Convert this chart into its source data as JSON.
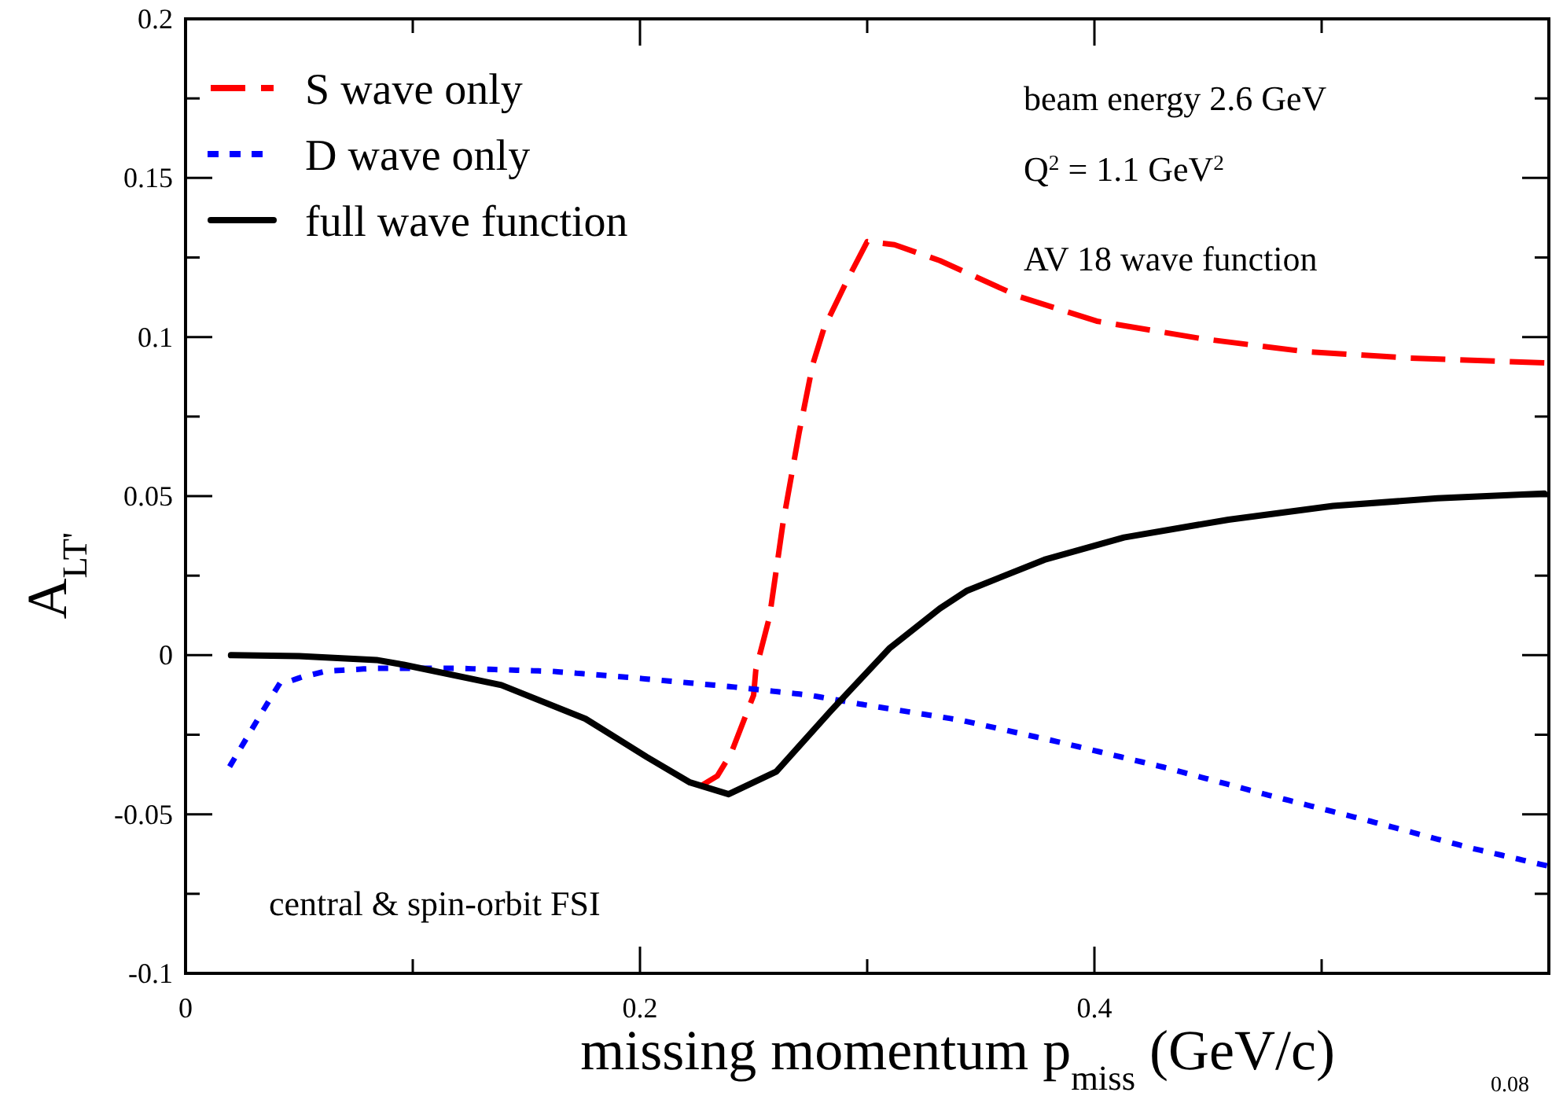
{
  "chart_data": {
    "type": "line",
    "xlabel": "missing momentum p$_{miss}$  (GeV/c)",
    "ylabel": "A$_{LT'}$",
    "xlim": [
      0,
      0.6
    ],
    "xticks": [
      0,
      {
        "value": 0.1,
        "label": null
      },
      0.2,
      {
        "value": 0.3,
        "label": null
      },
      0.4,
      {
        "value": 0.5,
        "label": null
      }
    ],
    "ylim": [
      -0.1,
      0.2
    ],
    "yticks": [
      -0.1,
      {
        "value": -0.075,
        "label": null
      },
      -0.05,
      {
        "value": -0.025,
        "label": null
      },
      0,
      {
        "value": 0.025,
        "label": null
      },
      0.05,
      {
        "value": 0.075,
        "label": null
      },
      0.1,
      {
        "value": 0.125,
        "label": null
      },
      0.15,
      {
        "value": 0.175,
        "label": null
      },
      0.2
    ],
    "legend": "top left",
    "series": [
      {
        "name": "S wave only",
        "color": "#ff0000",
        "line_style": "dashed",
        "x": [
          0.227,
          0.234,
          0.24,
          0.25,
          0.251,
          0.257,
          0.263,
          0.27,
          0.276,
          0.281,
          0.291,
          0.3,
          0.312,
          0.332,
          0.367,
          0.401,
          0.447,
          0.493,
          0.539,
          0.598
        ],
        "values": [
          -0.041,
          -0.038,
          -0.031,
          -0.0126,
          -0.0045,
          0.012,
          0.0418,
          0.0698,
          0.0913,
          0.1028,
          0.1176,
          0.13,
          0.129,
          0.124,
          0.1127,
          0.105,
          0.0995,
          0.0954,
          0.0934,
          0.0919
        ]
      },
      {
        "name": "D wave only",
        "color": "#0000ff",
        "line_style": "dotted",
        "x": [
          0.02,
          0.027,
          0.034,
          0.041,
          0.051,
          0.062,
          0.084,
          0.119,
          0.162,
          0.197,
          0.24,
          0.275,
          0.298,
          0.341,
          0.385,
          0.431,
          0.475,
          0.521,
          0.565,
          0.598
        ],
        "values": [
          -0.0343,
          -0.0259,
          -0.0175,
          -0.0094,
          -0.0069,
          -0.005,
          -0.0041,
          -0.0041,
          -0.0051,
          -0.0071,
          -0.0099,
          -0.0126,
          -0.0155,
          -0.0204,
          -0.0274,
          -0.0353,
          -0.0437,
          -0.0521,
          -0.0605,
          -0.066
        ]
      },
      {
        "name": "full wave function",
        "color": "#000000",
        "line_style": "solid",
        "x": [
          0.02,
          0.05,
          0.084,
          0.096,
          0.139,
          0.176,
          0.203,
          0.222,
          0.239,
          0.26,
          0.284,
          0.31,
          0.332,
          0.344,
          0.378,
          0.413,
          0.459,
          0.505,
          0.551,
          0.598
        ],
        "values": [
          0,
          -0.0003,
          -0.0015,
          -0.003,
          -0.0094,
          -0.02,
          -0.032,
          -0.04,
          -0.0437,
          -0.0366,
          -0.0175,
          0.0023,
          0.0147,
          0.0203,
          0.03,
          0.037,
          0.0426,
          0.0469,
          0.0493,
          0.0508
        ]
      }
    ],
    "annotations": [
      "beam energy 2.6 GeV",
      "Q$^{2}$ = 1.1 GeV$^{2}$",
      "AV 18 wave function",
      "central & spin-orbit FSI",
      "0.08"
    ]
  }
}
